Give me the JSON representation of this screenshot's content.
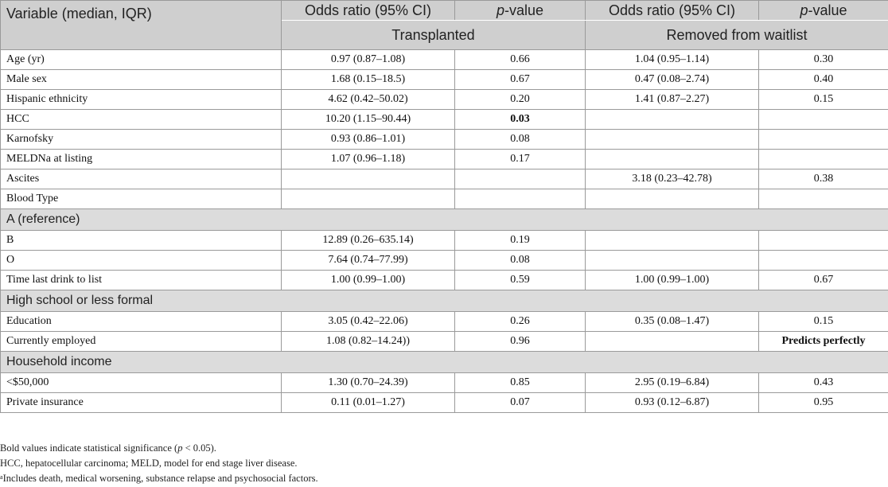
{
  "header": {
    "variable": "Variable (median, IQR)",
    "or_label": "Odds ratio (95% CI)",
    "p_italic": "p",
    "p_rest": "-value",
    "group_transplanted": "Transplanted",
    "group_removed": "Removed from waitlist"
  },
  "rows": [
    {
      "label": "Age (yr)",
      "t_or": "0.97 (0.87–1.08)",
      "t_p": "0.66",
      "r_or": "1.04 (0.95–1.14)",
      "r_p": "0.30"
    },
    {
      "label": "Male sex",
      "t_or": "1.68 (0.15–18.5)",
      "t_p": "0.67",
      "r_or": "0.47 (0.08–2.74)",
      "r_p": "0.40"
    },
    {
      "label": "Hispanic ethnicity",
      "t_or": "4.62 (0.42–50.02)",
      "t_p": "0.20",
      "r_or": "1.41 (0.87–2.27)",
      "r_p": "0.15"
    },
    {
      "label": "HCC",
      "t_or": "10.20 (1.15–90.44)",
      "t_p": "0.03",
      "r_or": "",
      "r_p": ""
    },
    {
      "label": "Karnofsky",
      "t_or": "0.93 (0.86–1.01)",
      "t_p": "0.08",
      "r_or": "",
      "r_p": ""
    },
    {
      "label": "MELDNa at listing",
      "t_or": "1.07 (0.96–1.18)",
      "t_p": "0.17",
      "r_or": "",
      "r_p": ""
    },
    {
      "label": "Ascites",
      "t_or": "",
      "t_p": "",
      "r_or": "3.18 (0.23–42.78)",
      "r_p": "0.38"
    },
    {
      "label": "Blood Type",
      "t_or": "",
      "t_p": "",
      "r_or": "",
      "r_p": ""
    },
    {
      "section": "A (reference)"
    },
    {
      "label": "B",
      "t_or": "12.89 (0.26–635.14)",
      "t_p": "0.19",
      "r_or": "",
      "r_p": ""
    },
    {
      "label": "O",
      "t_or": "7.64 (0.74–77.99)",
      "t_p": "0.08",
      "r_or": "",
      "r_p": ""
    },
    {
      "label": "Time last drink to list",
      "t_or": "1.00 (0.99–1.00)",
      "t_p": "0.59",
      "r_or": "1.00 (0.99–1.00)",
      "r_p": "0.67"
    },
    {
      "section": "High school or less formal"
    },
    {
      "label": "Education",
      "t_or": "3.05 (0.42–22.06)",
      "t_p": "0.26",
      "r_or": "0.35 (0.08–1.47)",
      "r_p": "0.15"
    },
    {
      "label": "Currently employed",
      "t_or": "1.08 (0.82–14.24))",
      "t_p": "0.96",
      "r_or": "",
      "r_p": "Predicts perfectly"
    },
    {
      "section": "Household income"
    },
    {
      "label": "<$50,000",
      "t_or": "1.30 (0.70–24.39)",
      "t_p": "0.85",
      "r_or": "2.95 (0.19–6.84)",
      "r_p": "0.43"
    },
    {
      "label": "Private insurance",
      "t_or": "0.11 (0.01–1.27)",
      "t_p": "0.07",
      "r_or": "0.93 (0.12–6.87)",
      "r_p": "0.95"
    }
  ],
  "notes": {
    "bold_pre": "Bold values indicate statistical significance (",
    "bold_p": "p",
    "bold_post": " < 0.05).",
    "abbrev": "HCC, hepatocellular carcinoma; MELD, model for end stage liver disease.",
    "footnote_mark": "a",
    "footnote": "Includes death, medical worsening, substance relapse and psychosocial factors."
  }
}
